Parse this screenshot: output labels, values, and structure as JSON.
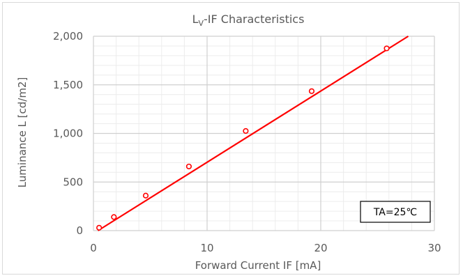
{
  "chart_data": {
    "type": "line",
    "title": {
      "main": "L",
      "sub": "V",
      "rest": "-IF Characteristics"
    },
    "xlabel": "Forward Current   IF [mA]",
    "ylabel": "Luminance L [cd/m2]",
    "xlim": [
      0,
      30
    ],
    "ylim": [
      0,
      2000
    ],
    "x_ticks": [
      0,
      10,
      20,
      30
    ],
    "x_tick_labels": [
      "0",
      "10",
      "20",
      "30"
    ],
    "y_ticks": [
      0,
      500,
      1000,
      1500,
      2000
    ],
    "y_tick_labels": [
      "0",
      "500",
      "1,000",
      "1,500",
      "2,000"
    ],
    "x_minor_step": 2,
    "y_minor_step": 100,
    "grid": true,
    "annotation": "TA=25℃",
    "series": [
      {
        "color": "#ff0000",
        "x": [
          0.5,
          1.8,
          4.6,
          8.4,
          13.4,
          19.2,
          25.8
        ],
        "y": [
          30,
          140,
          360,
          660,
          1025,
          1435,
          1875
        ],
        "line_x": [
          0.4,
          27.7
        ],
        "line_y": [
          0,
          2000
        ]
      }
    ]
  }
}
